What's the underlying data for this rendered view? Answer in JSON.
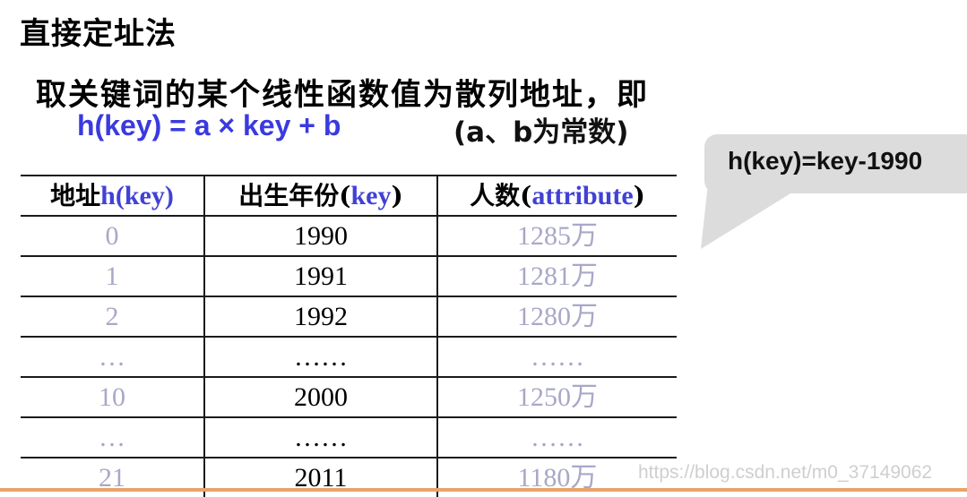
{
  "title": "直接定址法",
  "intro": "取关键词的某个线性函数值为散列地址，即",
  "formula": "h(key) = a × key + b",
  "formula_note": "(a、b为常数)",
  "table": {
    "headers": [
      {
        "prefix": "地址",
        "highlight": "h(key)",
        "suffix": ""
      },
      {
        "prefix": "出生年份(",
        "highlight": "key",
        "suffix": ")"
      },
      {
        "prefix": "人数(",
        "highlight": "attribute",
        "suffix": ")"
      }
    ],
    "rows": [
      [
        "0",
        "1990",
        "1285万"
      ],
      [
        "1",
        "1991",
        "1281万"
      ],
      [
        "2",
        "1992",
        "1280万"
      ],
      [
        "…",
        "……",
        "……"
      ],
      [
        "10",
        "2000",
        "1250万"
      ],
      [
        "…",
        "……",
        "……"
      ],
      [
        "21",
        "2011",
        "1180万"
      ]
    ]
  },
  "callout": "h(key)=key-1990",
  "watermark": "https://blog.csdn.net/m0_37149062",
  "colors": {
    "formula": "#3a3ae0",
    "header_highlight": "#4141d6",
    "muted_cells": "#a8a8c8",
    "callout_bg": "#dcdcdc",
    "bottom_rule": "#e8a36a"
  }
}
